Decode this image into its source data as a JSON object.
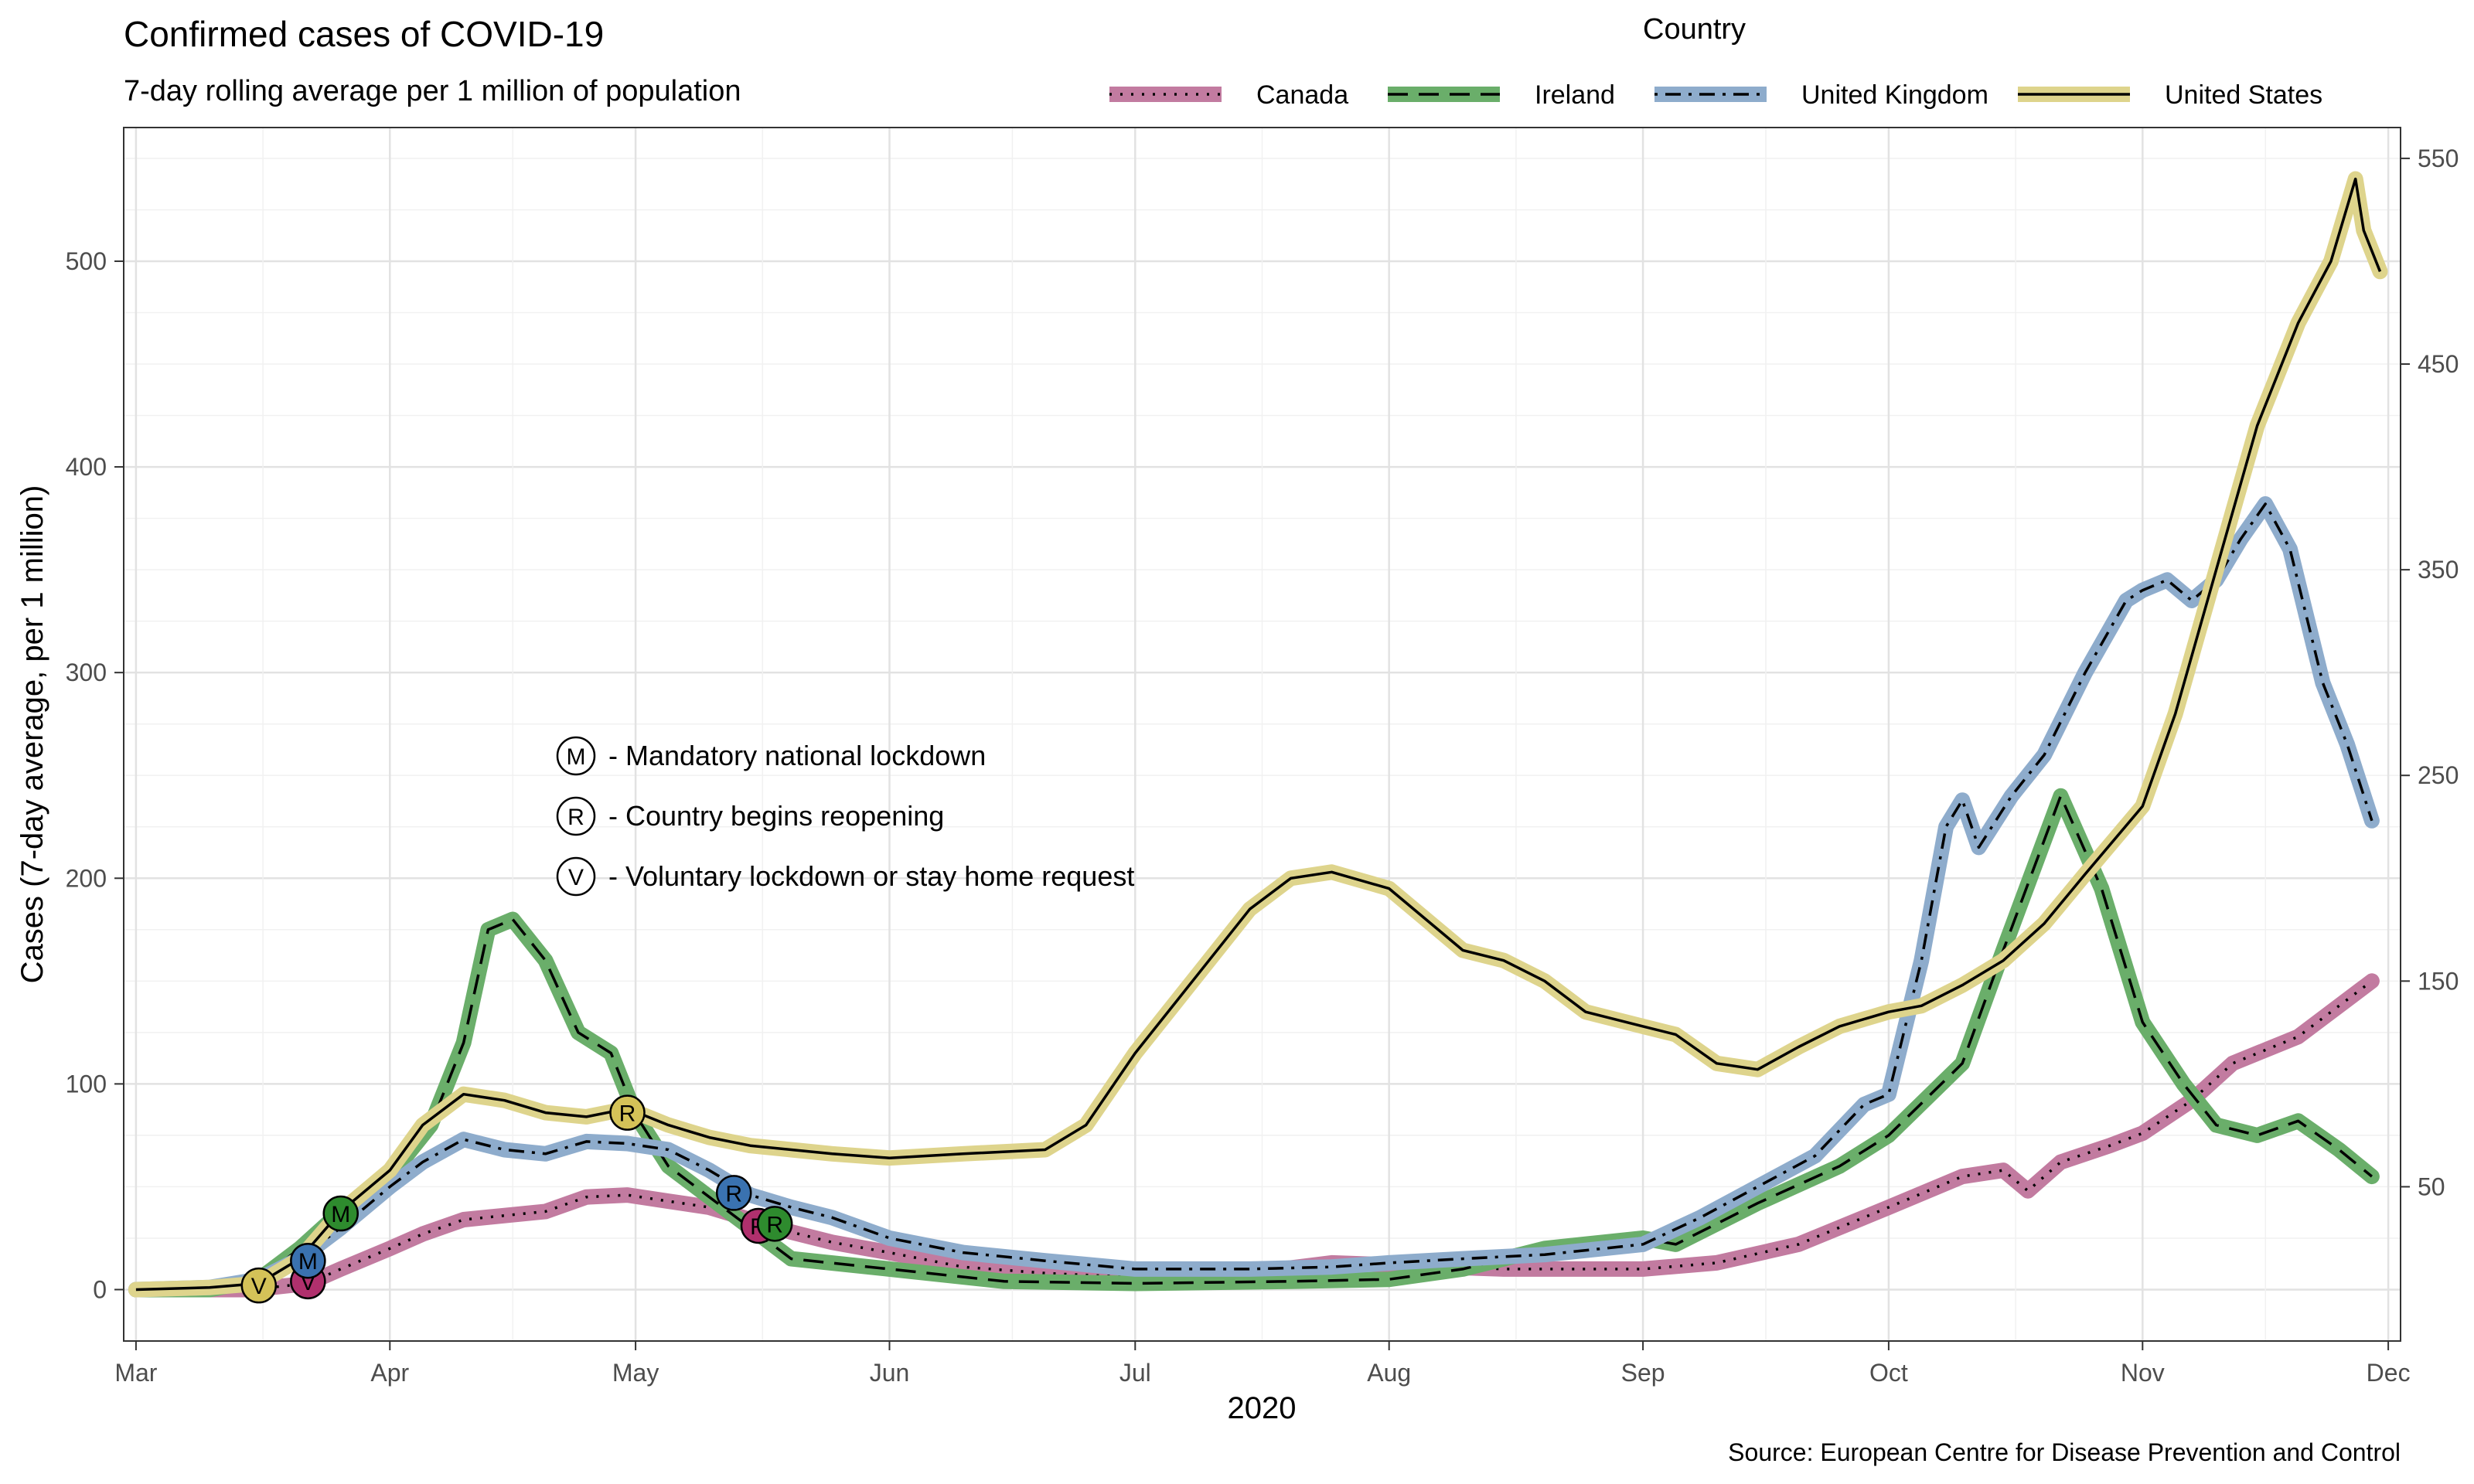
{
  "chart_data": {
    "type": "line",
    "title": "Confirmed cases of COVID-19",
    "subtitle": "7-day rolling average per 1 million of population",
    "xlabel": "2020",
    "ylabel": "Cases (7-day average, per 1 million)",
    "source": "Source: European Centre for Disease Prevention and Control",
    "x_range": [
      "2020-03-01",
      "2020-12-01"
    ],
    "ylim": [
      -25,
      565
    ],
    "y_ticks": [
      0,
      100,
      200,
      300,
      400,
      500
    ],
    "y2_ticks": [
      50,
      150,
      250,
      350,
      450,
      550
    ],
    "x_ticks": [
      {
        "date": "2020-03-01",
        "label": "Mar"
      },
      {
        "date": "2020-04-01",
        "label": "Apr"
      },
      {
        "date": "2020-05-01",
        "label": "May"
      },
      {
        "date": "2020-06-01",
        "label": "Jun"
      },
      {
        "date": "2020-07-01",
        "label": "Jul"
      },
      {
        "date": "2020-08-01",
        "label": "Aug"
      },
      {
        "date": "2020-09-01",
        "label": "Sep"
      },
      {
        "date": "2020-10-01",
        "label": "Oct"
      },
      {
        "date": "2020-11-01",
        "label": "Nov"
      },
      {
        "date": "2020-12-01",
        "label": "Dec"
      }
    ],
    "grid": true,
    "legend": {
      "title": "Country",
      "position": "top-right"
    },
    "series": [
      {
        "name": "Canada",
        "color": "#c27ba0",
        "line": "dotted",
        "points": [
          [
            "2020-03-01",
            0
          ],
          [
            "2020-03-15",
            0
          ],
          [
            "2020-03-22",
            3
          ],
          [
            "2020-03-26",
            10
          ],
          [
            "2020-04-01",
            20
          ],
          [
            "2020-04-05",
            27
          ],
          [
            "2020-04-10",
            34
          ],
          [
            "2020-04-15",
            36
          ],
          [
            "2020-04-20",
            38
          ],
          [
            "2020-04-25",
            45
          ],
          [
            "2020-04-30",
            46
          ],
          [
            "2020-05-05",
            43
          ],
          [
            "2020-05-10",
            40
          ],
          [
            "2020-05-15",
            34
          ],
          [
            "2020-05-20",
            28
          ],
          [
            "2020-05-25",
            23
          ],
          [
            "2020-06-01",
            18
          ],
          [
            "2020-06-10",
            11
          ],
          [
            "2020-06-20",
            8
          ],
          [
            "2020-07-01",
            6
          ],
          [
            "2020-07-15",
            8
          ],
          [
            "2020-07-25",
            13
          ],
          [
            "2020-08-01",
            12
          ],
          [
            "2020-08-15",
            10
          ],
          [
            "2020-09-01",
            10
          ],
          [
            "2020-09-10",
            13
          ],
          [
            "2020-09-20",
            22
          ],
          [
            "2020-10-01",
            40
          ],
          [
            "2020-10-10",
            55
          ],
          [
            "2020-10-15",
            58
          ],
          [
            "2020-10-18",
            48
          ],
          [
            "2020-10-22",
            62
          ],
          [
            "2020-10-28",
            70
          ],
          [
            "2020-11-01",
            76
          ],
          [
            "2020-11-07",
            92
          ],
          [
            "2020-11-12",
            110
          ],
          [
            "2020-11-20",
            123
          ],
          [
            "2020-11-29",
            150
          ]
        ]
      },
      {
        "name": "Ireland",
        "color": "#6aae6a",
        "line": "dashed",
        "points": [
          [
            "2020-03-01",
            0
          ],
          [
            "2020-03-10",
            0
          ],
          [
            "2020-03-16",
            5
          ],
          [
            "2020-03-21",
            20
          ],
          [
            "2020-03-26",
            38
          ],
          [
            "2020-04-01",
            55
          ],
          [
            "2020-04-06",
            80
          ],
          [
            "2020-04-10",
            120
          ],
          [
            "2020-04-13",
            175
          ],
          [
            "2020-04-16",
            180
          ],
          [
            "2020-04-20",
            160
          ],
          [
            "2020-04-24",
            125
          ],
          [
            "2020-04-28",
            115
          ],
          [
            "2020-05-01",
            85
          ],
          [
            "2020-05-05",
            60
          ],
          [
            "2020-05-10",
            45
          ],
          [
            "2020-05-15",
            30
          ],
          [
            "2020-05-20",
            15
          ],
          [
            "2020-06-01",
            10
          ],
          [
            "2020-06-15",
            4
          ],
          [
            "2020-07-01",
            3
          ],
          [
            "2020-07-20",
            4
          ],
          [
            "2020-08-01",
            5
          ],
          [
            "2020-08-10",
            10
          ],
          [
            "2020-08-20",
            20
          ],
          [
            "2020-09-01",
            25
          ],
          [
            "2020-09-05",
            22
          ],
          [
            "2020-09-15",
            42
          ],
          [
            "2020-09-25",
            60
          ],
          [
            "2020-10-01",
            75
          ],
          [
            "2020-10-10",
            110
          ],
          [
            "2020-10-15",
            165
          ],
          [
            "2020-10-22",
            240
          ],
          [
            "2020-10-27",
            195
          ],
          [
            "2020-11-01",
            130
          ],
          [
            "2020-11-06",
            100
          ],
          [
            "2020-11-10",
            80
          ],
          [
            "2020-11-15",
            75
          ],
          [
            "2020-11-20",
            82
          ],
          [
            "2020-11-25",
            68
          ],
          [
            "2020-11-29",
            55
          ]
        ]
      },
      {
        "name": "United Kingdom",
        "color": "#8eaccc",
        "line": "dotdash",
        "points": [
          [
            "2020-03-01",
            0
          ],
          [
            "2020-03-10",
            1
          ],
          [
            "2020-03-16",
            5
          ],
          [
            "2020-03-21",
            15
          ],
          [
            "2020-03-26",
            30
          ],
          [
            "2020-04-01",
            50
          ],
          [
            "2020-04-05",
            62
          ],
          [
            "2020-04-10",
            73
          ],
          [
            "2020-04-15",
            68
          ],
          [
            "2020-04-20",
            66
          ],
          [
            "2020-04-25",
            72
          ],
          [
            "2020-04-30",
            71
          ],
          [
            "2020-05-05",
            68
          ],
          [
            "2020-05-10",
            58
          ],
          [
            "2020-05-15",
            46
          ],
          [
            "2020-05-20",
            40
          ],
          [
            "2020-05-25",
            35
          ],
          [
            "2020-06-01",
            25
          ],
          [
            "2020-06-10",
            18
          ],
          [
            "2020-06-20",
            14
          ],
          [
            "2020-07-01",
            10
          ],
          [
            "2020-07-15",
            10
          ],
          [
            "2020-07-25",
            11
          ],
          [
            "2020-08-01",
            13
          ],
          [
            "2020-08-10",
            15
          ],
          [
            "2020-08-20",
            17
          ],
          [
            "2020-09-01",
            22
          ],
          [
            "2020-09-08",
            35
          ],
          [
            "2020-09-15",
            50
          ],
          [
            "2020-09-22",
            65
          ],
          [
            "2020-09-28",
            90
          ],
          [
            "2020-10-01",
            95
          ],
          [
            "2020-10-05",
            160
          ],
          [
            "2020-10-08",
            225
          ],
          [
            "2020-10-10",
            238
          ],
          [
            "2020-10-12",
            215
          ],
          [
            "2020-10-16",
            240
          ],
          [
            "2020-10-20",
            260
          ],
          [
            "2020-10-25",
            300
          ],
          [
            "2020-10-30",
            335
          ],
          [
            "2020-11-01",
            340
          ],
          [
            "2020-11-04",
            345
          ],
          [
            "2020-11-07",
            335
          ],
          [
            "2020-11-10",
            345
          ],
          [
            "2020-11-13",
            365
          ],
          [
            "2020-11-16",
            382
          ],
          [
            "2020-11-19",
            360
          ],
          [
            "2020-11-23",
            295
          ],
          [
            "2020-11-26",
            265
          ],
          [
            "2020-11-29",
            228
          ]
        ]
      },
      {
        "name": "United States",
        "color": "#ded48c",
        "line": "solid",
        "points": [
          [
            "2020-03-01",
            0
          ],
          [
            "2020-03-10",
            1
          ],
          [
            "2020-03-16",
            3
          ],
          [
            "2020-03-21",
            15
          ],
          [
            "2020-03-26",
            38
          ],
          [
            "2020-04-01",
            58
          ],
          [
            "2020-04-05",
            80
          ],
          [
            "2020-04-10",
            95
          ],
          [
            "2020-04-15",
            92
          ],
          [
            "2020-04-20",
            86
          ],
          [
            "2020-04-25",
            84
          ],
          [
            "2020-04-30",
            88
          ],
          [
            "2020-05-05",
            80
          ],
          [
            "2020-05-10",
            74
          ],
          [
            "2020-05-15",
            70
          ],
          [
            "2020-05-20",
            68
          ],
          [
            "2020-05-25",
            66
          ],
          [
            "2020-06-01",
            64
          ],
          [
            "2020-06-10",
            66
          ],
          [
            "2020-06-20",
            68
          ],
          [
            "2020-06-25",
            80
          ],
          [
            "2020-07-01",
            115
          ],
          [
            "2020-07-08",
            150
          ],
          [
            "2020-07-15",
            185
          ],
          [
            "2020-07-20",
            200
          ],
          [
            "2020-07-25",
            203
          ],
          [
            "2020-08-01",
            195
          ],
          [
            "2020-08-10",
            165
          ],
          [
            "2020-08-15",
            160
          ],
          [
            "2020-08-20",
            150
          ],
          [
            "2020-08-25",
            135
          ],
          [
            "2020-09-01",
            128
          ],
          [
            "2020-09-05",
            124
          ],
          [
            "2020-09-10",
            110
          ],
          [
            "2020-09-15",
            107
          ],
          [
            "2020-09-20",
            118
          ],
          [
            "2020-09-25",
            128
          ],
          [
            "2020-10-01",
            135
          ],
          [
            "2020-10-05",
            138
          ],
          [
            "2020-10-10",
            148
          ],
          [
            "2020-10-15",
            160
          ],
          [
            "2020-10-20",
            178
          ],
          [
            "2020-10-25",
            202
          ],
          [
            "2020-11-01",
            235
          ],
          [
            "2020-11-05",
            280
          ],
          [
            "2020-11-10",
            350
          ],
          [
            "2020-11-15",
            420
          ],
          [
            "2020-11-20",
            470
          ],
          [
            "2020-11-24",
            500
          ],
          [
            "2020-11-27",
            540
          ],
          [
            "2020-11-28",
            515
          ],
          [
            "2020-11-29",
            505
          ],
          [
            "2020-11-30",
            495
          ]
        ]
      }
    ],
    "markers": [
      {
        "label": "V",
        "date": "2020-03-16",
        "y": 2,
        "series": "United States"
      },
      {
        "label": "V",
        "date": "2020-03-22",
        "y": 4,
        "series": "Canada"
      },
      {
        "label": "M",
        "date": "2020-03-22",
        "y": 14,
        "series": "United Kingdom"
      },
      {
        "label": "M",
        "date": "2020-03-26",
        "y": 37,
        "series": "Ireland"
      },
      {
        "label": "R",
        "date": "2020-04-30",
        "y": 86,
        "series": "United States"
      },
      {
        "label": "R",
        "date": "2020-05-13",
        "y": 47,
        "series": "United Kingdom"
      },
      {
        "label": "R",
        "date": "2020-05-16",
        "y": 31,
        "series": "Canada"
      },
      {
        "label": "R",
        "date": "2020-05-18",
        "y": 32,
        "series": "Ireland"
      }
    ],
    "annotations": [
      {
        "symbol": "M",
        "text": "- Mandatory national lockdown"
      },
      {
        "symbol": "R",
        "text": "- Country begins reopening"
      },
      {
        "symbol": "V",
        "text": "- Voluntary lockdown or stay home request"
      }
    ]
  }
}
